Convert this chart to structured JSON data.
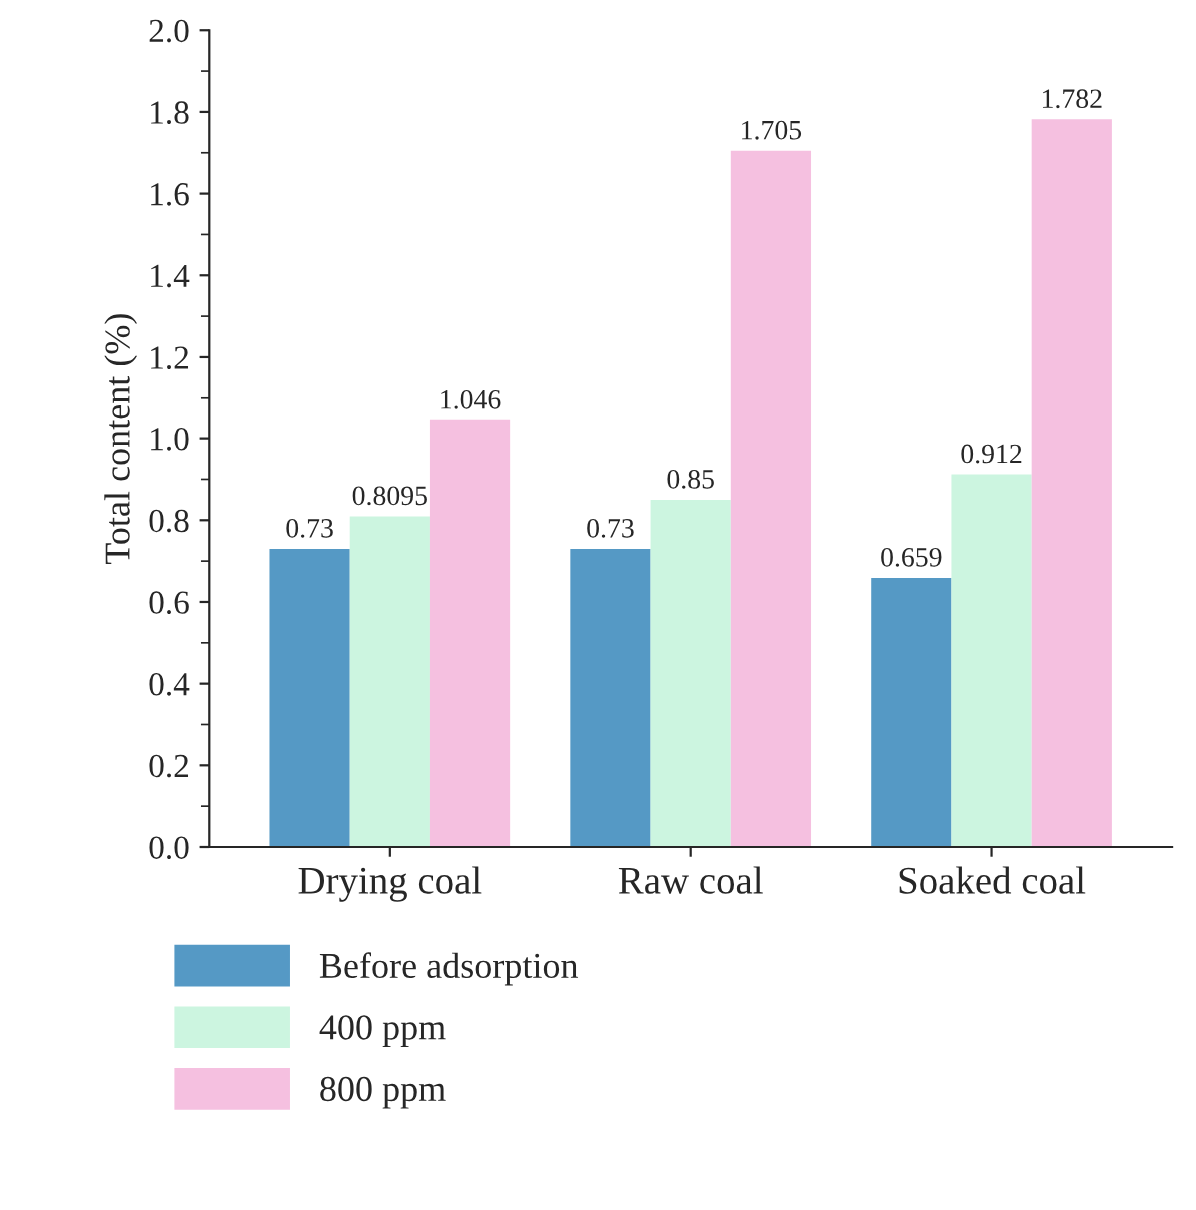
{
  "chart_data": {
    "type": "bar",
    "ylabel": "Total content (%)",
    "categories": [
      "Drying coal",
      "Raw coal",
      "Soaked coal"
    ],
    "series": [
      {
        "name": "Before adsorption",
        "color": "#5599c5",
        "values": [
          0.73,
          0.73,
          0.659
        ]
      },
      {
        "name": "400 ppm",
        "color": "#ccf5e0",
        "values": [
          0.8095,
          0.85,
          0.912
        ]
      },
      {
        "name": "800 ppm",
        "color": "#f5c0e0",
        "values": [
          1.046,
          1.705,
          1.782
        ]
      }
    ],
    "ylim": [
      0,
      2.0
    ],
    "yticks": [
      "0.0",
      "0.2",
      "0.4",
      "0.6",
      "0.8",
      "1.0",
      "1.2",
      "1.4",
      "1.6",
      "1.8",
      "2.0"
    ],
    "data_labels": true,
    "legend": "bottom",
    "grid": false
  }
}
